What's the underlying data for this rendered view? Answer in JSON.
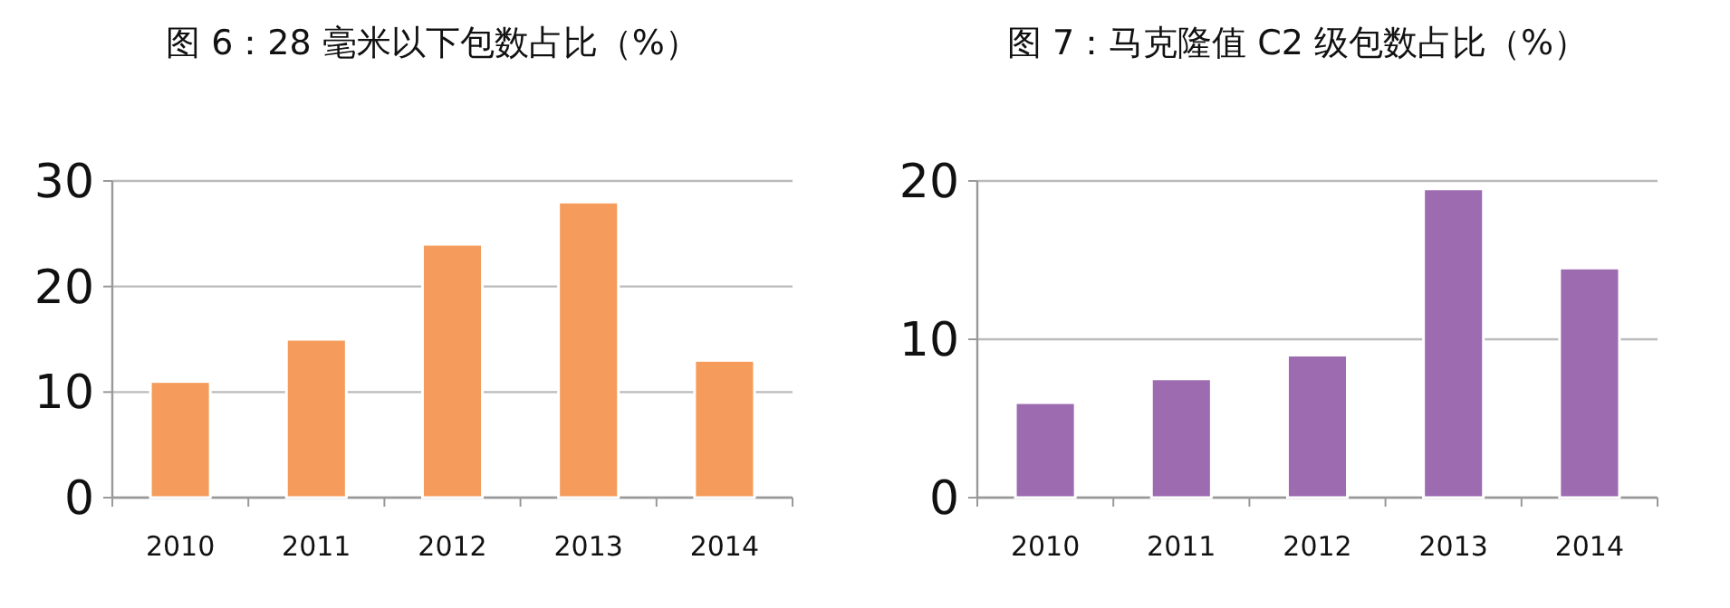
{
  "chart_data": [
    {
      "type": "bar",
      "title": "图 6：28 毫米以下包数占比（%）",
      "categories": [
        "2010",
        "2011",
        "2012",
        "2013",
        "2014"
      ],
      "values": [
        11,
        15,
        24,
        28,
        13
      ],
      "color": "#f59c5c",
      "ylim": [
        0,
        30
      ],
      "yticks": [
        0,
        10,
        20,
        30
      ],
      "grid": "y"
    },
    {
      "type": "bar",
      "title": "图 7：马克隆值 C2 级包数占比（%）",
      "categories": [
        "2010",
        "2011",
        "2012",
        "2013",
        "2014"
      ],
      "values": [
        6,
        7.5,
        9,
        19.5,
        14.5
      ],
      "color": "#9c6bb0",
      "ylim": [
        0,
        20
      ],
      "yticks": [
        0,
        10,
        20
      ],
      "grid": "y"
    }
  ]
}
